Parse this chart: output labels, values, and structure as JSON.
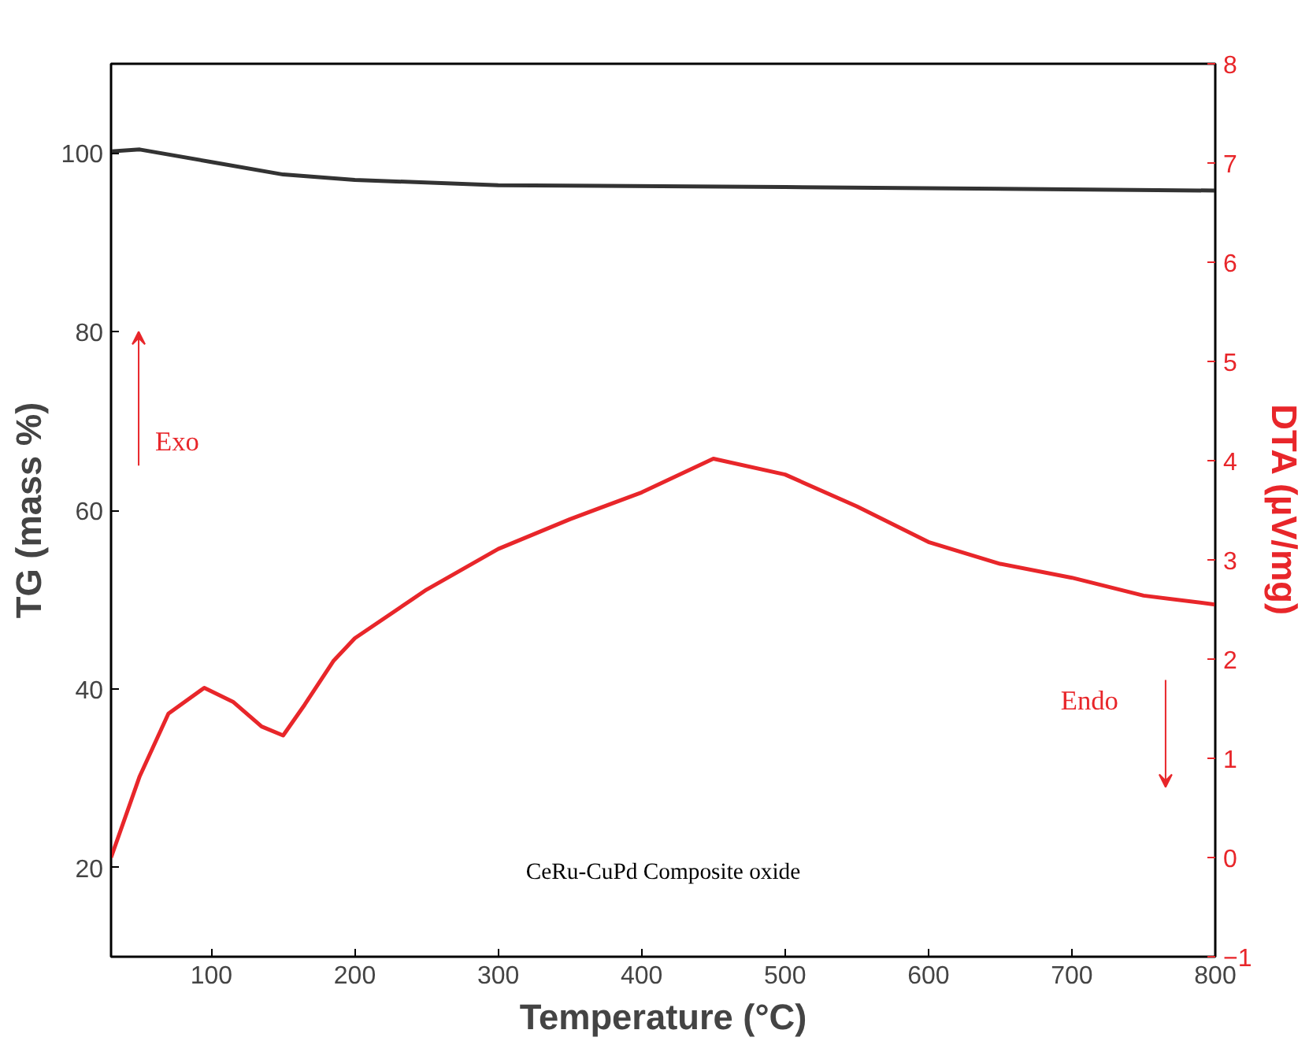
{
  "chart_data": {
    "type": "line",
    "xlabel": "Temperature (°C)",
    "ylabel": "TG (mass %)",
    "y2label": "DTA (µV/mg)",
    "xlim": [
      30,
      800
    ],
    "xticks": [
      100,
      200,
      300,
      400,
      500,
      600,
      700,
      800
    ],
    "ylim": [
      10,
      110
    ],
    "yticks": [
      20,
      40,
      60,
      80,
      100
    ],
    "y2lim": [
      -1,
      8
    ],
    "y2ticks": [
      -1,
      0,
      1,
      2,
      3,
      4,
      5,
      6,
      7,
      8
    ],
    "grid": false,
    "marker": "none",
    "line_style": "solid",
    "series": [
      {
        "color": "#333333",
        "x": [
          30,
          50,
          100,
          150,
          200,
          300,
          500,
          800
        ],
        "values": [
          100.2,
          100.4,
          99,
          97.6,
          97,
          96.4,
          96.2,
          95.8
        ]
      },
      {
        "color": "#e8262a",
        "axis": "y2",
        "x": [
          30,
          50,
          70,
          95,
          115,
          135,
          150,
          165,
          185,
          200,
          250,
          300,
          350,
          400,
          450,
          500,
          550,
          600,
          650,
          700,
          750,
          800
        ],
        "values": [
          0,
          0.82,
          1.45,
          1.71,
          1.57,
          1.32,
          1.23,
          1.54,
          1.98,
          2.21,
          2.7,
          3.11,
          3.41,
          3.68,
          4.02,
          3.86,
          3.54,
          3.18,
          2.96,
          2.82,
          2.64,
          2.55
        ]
      }
    ],
    "annotations": [
      "Exo",
      "Endo",
      "CeRu-CuPd Composite oxide"
    ]
  }
}
